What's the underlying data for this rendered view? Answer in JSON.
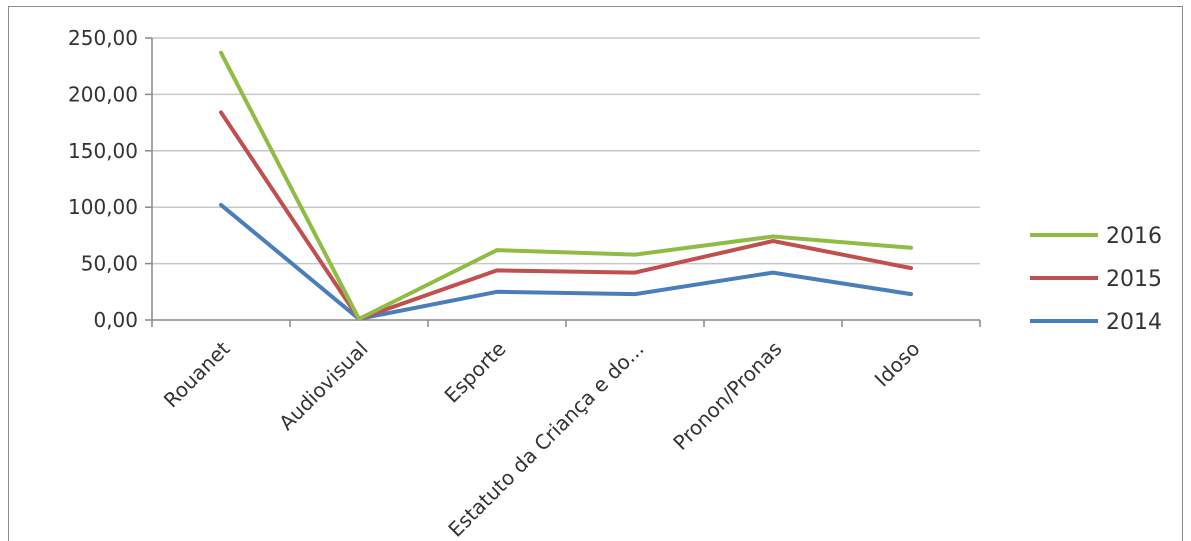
{
  "chart_data": {
    "type": "line",
    "categories": [
      "Rouanet",
      "Audiovisual",
      "Esporte",
      "Estatuto da Criança e do...",
      "Pronon/Pronas",
      "Idoso"
    ],
    "y_ticks": [
      "0,00",
      "50,00",
      "100,00",
      "150,00",
      "200,00",
      "250,00"
    ],
    "ylim": [
      0,
      250
    ],
    "grid": true,
    "legend_position": "right",
    "series": [
      {
        "name": "2016",
        "color": "#8fbc45",
        "values": [
          237,
          1,
          62,
          58,
          74,
          64
        ]
      },
      {
        "name": "2015",
        "color": "#c0504d",
        "values": [
          184,
          1,
          44,
          42,
          70,
          46
        ]
      },
      {
        "name": "2014",
        "color": "#4a7ebb",
        "values": [
          102,
          1,
          25,
          23,
          42,
          23
        ]
      }
    ]
  }
}
